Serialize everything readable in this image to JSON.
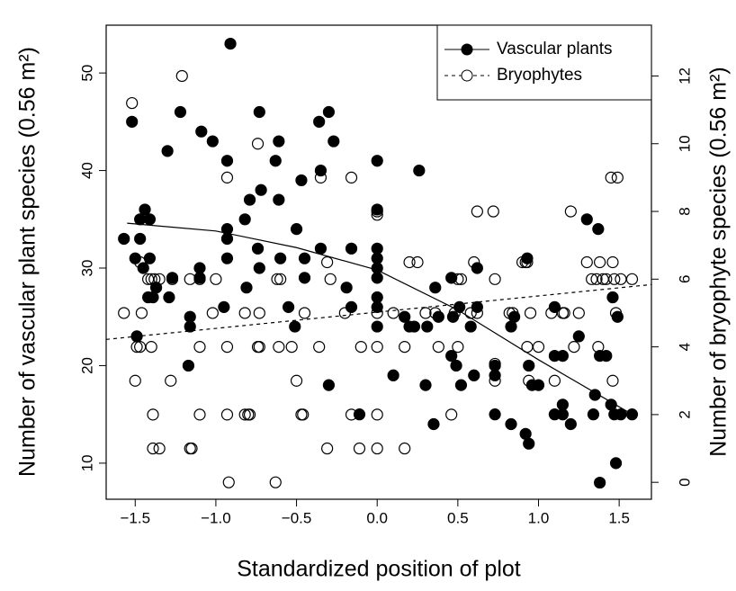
{
  "chart_data": {
    "type": "scatter",
    "xlabel": "Standardized position of plot",
    "ylabel": "Number of vascular plant species (0.56 m²)",
    "y2label": "Number of bryophyte species (0.56 m²)",
    "xlim": [
      -1.68,
      1.7
    ],
    "ylim": [
      6.3,
      54.9
    ],
    "y2lim": [
      -0.5,
      13.5
    ],
    "xticks": [
      {
        "value": -1.5,
        "label": "−1.5"
      },
      {
        "value": -1.0,
        "label": "−1.0"
      },
      {
        "value": -0.5,
        "label": "−0.5"
      },
      {
        "value": 0,
        "label": "0.0"
      },
      0.5,
      {
        "value": 1.0,
        "label": "1.0"
      },
      1.5
    ],
    "yticks": [
      10,
      20,
      30,
      40,
      50
    ],
    "y2ticks": [
      0,
      2,
      4,
      6,
      8,
      10,
      12
    ],
    "legend": "top-right",
    "series": [
      {
        "name": "Vascular plants",
        "color": "#000000",
        "marker": "filled",
        "line_style": "solid",
        "x": [
          -1.57,
          -1.52,
          -1.5,
          -1.49,
          -1.47,
          -1.47,
          -1.45,
          -1.44,
          -1.42,
          -1.41,
          -1.41,
          -1.39,
          -1.37,
          -1.3,
          -1.29,
          -1.27,
          -1.22,
          -1.17,
          -1.16,
          -1.16,
          -1.1,
          -1.1,
          -1.09,
          -1.02,
          -0.95,
          -0.93,
          -0.93,
          -0.93,
          -0.93,
          -0.91,
          -0.82,
          -0.81,
          -0.79,
          -0.74,
          -0.73,
          -0.73,
          -0.72,
          -0.63,
          -0.61,
          -0.61,
          -0.6,
          -0.55,
          -0.51,
          -0.5,
          -0.47,
          -0.45,
          -0.45,
          -0.36,
          -0.35,
          -0.35,
          -0.3,
          -0.3,
          -0.27,
          -0.19,
          -0.16,
          -0.16,
          -0.11,
          0,
          0,
          0,
          0,
          0,
          0,
          0,
          0,
          0,
          0.1,
          0.17,
          0.2,
          0.23,
          0.26,
          0.3,
          0.31,
          0.35,
          0.36,
          0.38,
          0.46,
          0.46,
          0.47,
          0.49,
          0.51,
          0.52,
          0.58,
          0.6,
          0.62,
          0.62,
          0.73,
          0.73,
          0.73,
          0.83,
          0.83,
          0.85,
          0.92,
          0.93,
          0.94,
          0.94,
          0.96,
          1.0,
          1.1,
          1.1,
          1.1,
          1.15,
          1.15,
          1.15,
          1.2,
          1.25,
          1.3,
          1.34,
          1.35,
          1.37,
          1.38,
          1.38,
          1.42,
          1.45,
          1.46,
          1.47,
          1.48,
          1.49,
          1.51,
          1.58
        ],
        "values": [
          33,
          45,
          31,
          23,
          35,
          33,
          30,
          36,
          27,
          35,
          31,
          27,
          28,
          42,
          27,
          29,
          46,
          20,
          24,
          25,
          29,
          30,
          44,
          43,
          26,
          41,
          34,
          33,
          31,
          53,
          35,
          28,
          37,
          32,
          30,
          46,
          38,
          41,
          43,
          37,
          31,
          26,
          24,
          34,
          39,
          29,
          31,
          45,
          32,
          40,
          46,
          18,
          43,
          28,
          32,
          26,
          15,
          41,
          36,
          32,
          31,
          30,
          29,
          27,
          26,
          24,
          19,
          25,
          24,
          24,
          40,
          18,
          24,
          14,
          28,
          25,
          29,
          21,
          25,
          20,
          26,
          18,
          24,
          19,
          30,
          26,
          20,
          15,
          19,
          24,
          14,
          25,
          13,
          31,
          20,
          12,
          18,
          18,
          26,
          21,
          15,
          15,
          16,
          21,
          14,
          23,
          35,
          15,
          17,
          34,
          21,
          8,
          21,
          16,
          27,
          15,
          10,
          25,
          15,
          15
        ],
        "fit_x": [
          -1.55,
          -1.0,
          -0.5,
          0,
          0.5,
          1.0,
          1.57
        ],
        "fit_values": [
          34.6,
          33.8,
          32.1,
          29.8,
          25.7,
          20.6,
          15.1
        ]
      },
      {
        "name": "Bryophytes",
        "color": "#000000",
        "marker": "open",
        "line_style": "dashed",
        "axis": "y2",
        "x": [
          -1.57,
          -1.52,
          -1.5,
          -1.49,
          -1.47,
          -1.47,
          -1.46,
          -1.42,
          -1.4,
          -1.4,
          -1.39,
          -1.39,
          -1.38,
          -1.35,
          -1.35,
          -1.28,
          -1.27,
          -1.21,
          -1.16,
          -1.15,
          -1.16,
          -1.1,
          -1.1,
          -1.1,
          -1.02,
          -1.0,
          -0.93,
          -0.93,
          -0.93,
          -0.92,
          -0.82,
          -0.8,
          -0.79,
          -0.82,
          -0.74,
          -0.74,
          -0.73,
          -0.73,
          -0.63,
          -0.62,
          -0.6,
          -0.61,
          -0.53,
          -0.5,
          -0.47,
          -0.46,
          -0.45,
          -0.35,
          -0.36,
          -0.31,
          -0.31,
          -0.29,
          -0.2,
          -0.16,
          -0.16,
          -0.11,
          -0.1,
          0,
          0,
          0,
          0,
          0,
          0,
          0.1,
          0.17,
          0.17,
          0.2,
          0.25,
          0.3,
          0.36,
          0.38,
          0.46,
          0.48,
          0.5,
          0.5,
          0.52,
          0.58,
          0.6,
          0.62,
          0.62,
          0.72,
          0.73,
          0.73,
          0.73,
          0.82,
          0.84,
          0.9,
          0.92,
          0.93,
          0.93,
          0.94,
          0.95,
          1.0,
          1.08,
          1.1,
          1.15,
          1.16,
          1.2,
          1.22,
          1.25,
          1.3,
          1.33,
          1.36,
          1.37,
          1.38,
          1.4,
          1.42,
          1.45,
          1.46,
          1.46,
          1.47,
          1.48,
          1.49,
          1.51,
          1.58
        ],
        "values": [
          5,
          11.2,
          3,
          4,
          4,
          6.5,
          5,
          6,
          6,
          4,
          2,
          1,
          6,
          1,
          6,
          3,
          6,
          12,
          1,
          1,
          6,
          6,
          4,
          2,
          5,
          6,
          4,
          2,
          9,
          0,
          2,
          2,
          2,
          5,
          10,
          4,
          5,
          4,
          0,
          6,
          6,
          4,
          4,
          3,
          2,
          2,
          5,
          9,
          4,
          1,
          6.5,
          6,
          5,
          2,
          9,
          1,
          4,
          8,
          7.9,
          5,
          4,
          2,
          1,
          5,
          1,
          4,
          6.5,
          6.5,
          5,
          5,
          4,
          2,
          5,
          6,
          4,
          6,
          5,
          6.5,
          8,
          5,
          8,
          6,
          3,
          3.5,
          5,
          5,
          6.5,
          6.5,
          6.5,
          4,
          3,
          5,
          4,
          5,
          3,
          5,
          5,
          8,
          4,
          5,
          6.5,
          6,
          6,
          4,
          6.5,
          6,
          6,
          9,
          6.5,
          3,
          6,
          5,
          9,
          6,
          6
        ],
        "fit_x": [
          -1.68,
          1.7
        ],
        "fit_values": [
          4.22,
          5.84
        ]
      }
    ]
  }
}
